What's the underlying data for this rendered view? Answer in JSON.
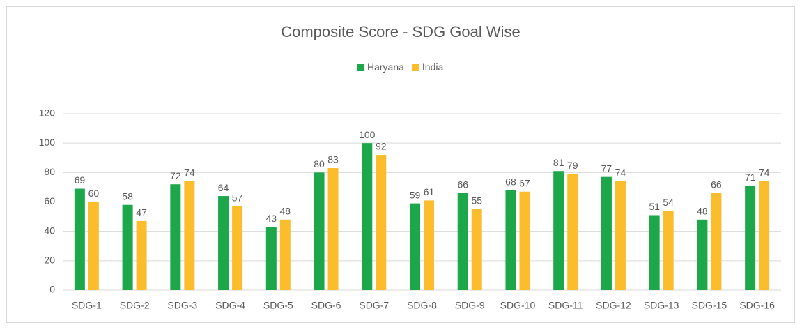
{
  "chart_data": {
    "type": "bar",
    "title": "Composite Score - SDG Goal Wise",
    "categories": [
      "SDG-1",
      "SDG-2",
      "SDG-3",
      "SDG-4",
      "SDG-5",
      "SDG-6",
      "SDG-7",
      "SDG-8",
      "SDG-9",
      "SDG-10",
      "SDG-11",
      "SDG-12",
      "SDG-13",
      "SDG-15",
      "SDG-16"
    ],
    "series": [
      {
        "name": "Haryana",
        "color": "#1ca84a",
        "values": [
          69,
          58,
          72,
          64,
          43,
          80,
          100,
          59,
          66,
          68,
          81,
          77,
          51,
          48,
          71
        ]
      },
      {
        "name": "India",
        "color": "#fbbd2c",
        "values": [
          60,
          47,
          74,
          57,
          48,
          83,
          92,
          61,
          55,
          67,
          79,
          74,
          54,
          66,
          74
        ]
      }
    ],
    "ylim": [
      0,
      120
    ],
    "yticks": [
      0,
      20,
      40,
      60,
      80,
      100,
      120
    ],
    "grid": true,
    "legend": "top"
  }
}
